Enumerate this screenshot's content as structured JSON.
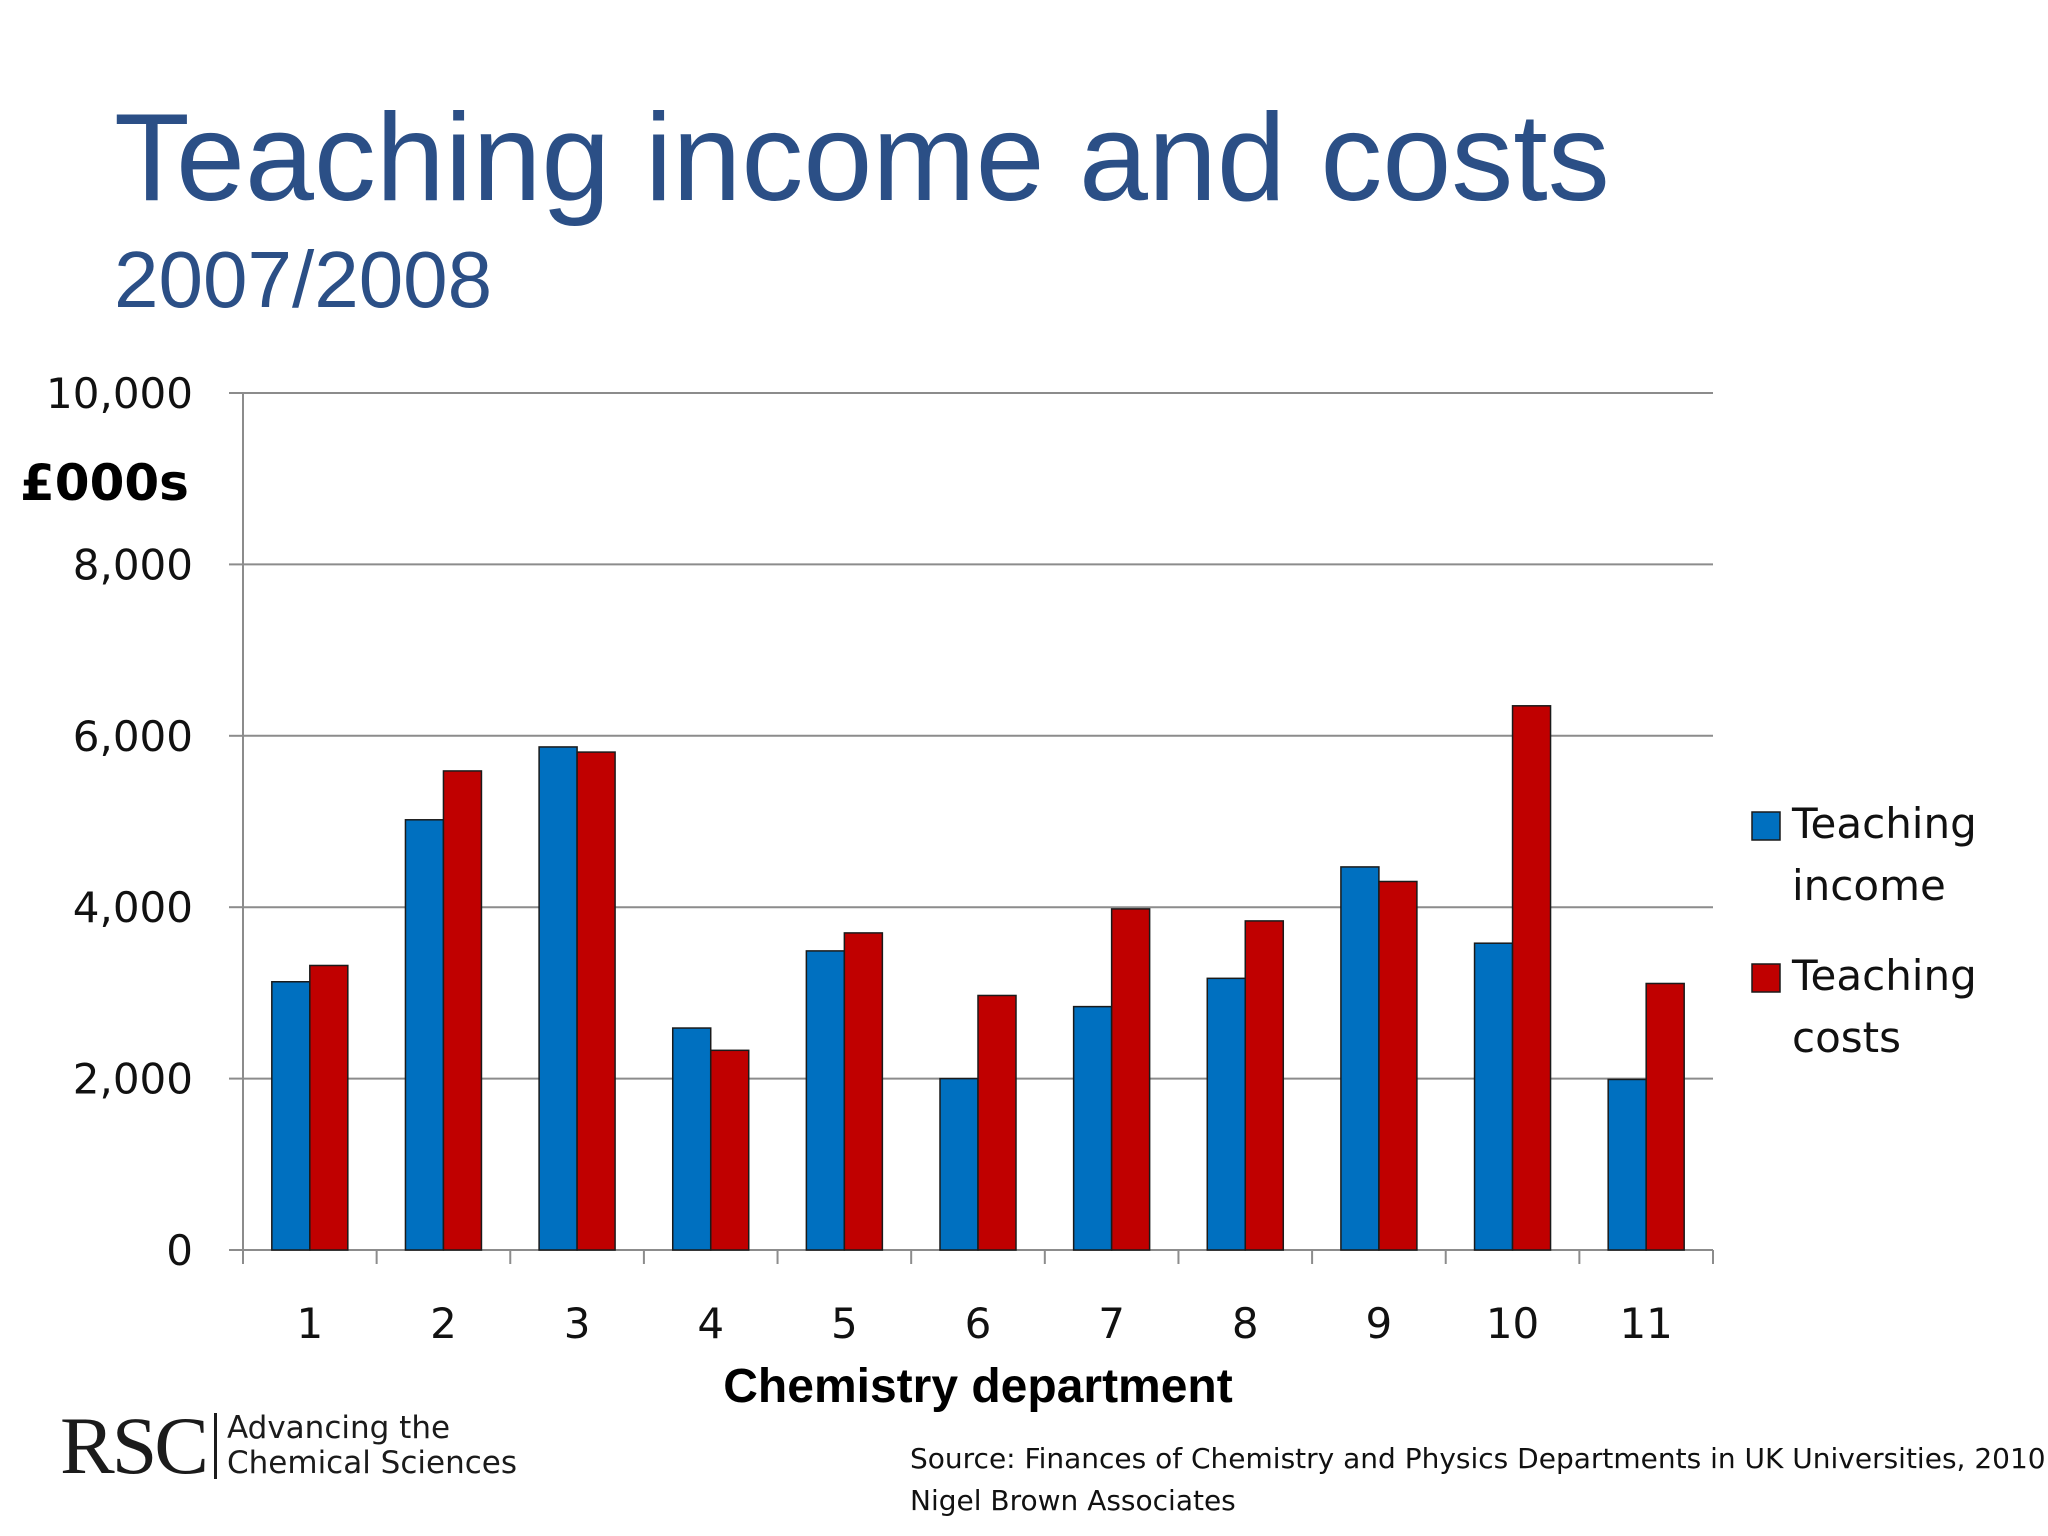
{
  "slide": {
    "title": "Teaching income and costs",
    "subtitle": "2007/2008"
  },
  "logo": {
    "mark": "RSC",
    "tagline_line1": "Advancing the",
    "tagline_line2": "Chemical Sciences"
  },
  "source": {
    "line1": "Source: Finances of Chemistry and Physics Departments in UK Universities, 2010",
    "line2": "Nigel Brown Associates"
  },
  "chart_data": {
    "type": "bar",
    "title": "",
    "xlabel": "Chemistry department",
    "ylabel": "£000s",
    "ylim": [
      0,
      10000
    ],
    "yticks": [
      0,
      2000,
      4000,
      6000,
      8000,
      10000
    ],
    "ytick_labels": [
      "0",
      "2,000",
      "4,000",
      "6,000",
      "8,000",
      "10,000"
    ],
    "grid": true,
    "legend_position": "right",
    "categories": [
      "1",
      "2",
      "3",
      "4",
      "5",
      "6",
      "7",
      "8",
      "9",
      "10",
      "11"
    ],
    "series": [
      {
        "name": "Teaching income",
        "legend_lines": [
          "Teaching",
          "income"
        ],
        "color": "#0070c0",
        "values": [
          3130,
          5020,
          5870,
          2590,
          3490,
          2000,
          2840,
          3170,
          4470,
          3580,
          1990
        ]
      },
      {
        "name": "Teaching costs",
        "legend_lines": [
          "Teaching",
          "costs"
        ],
        "color": "#c00000",
        "values": [
          3320,
          5590,
          5810,
          2330,
          3700,
          2970,
          3980,
          3840,
          4300,
          6350,
          3110
        ]
      }
    ]
  }
}
